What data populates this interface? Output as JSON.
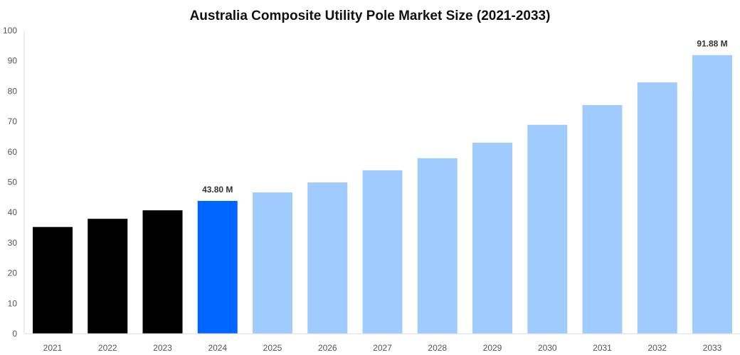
{
  "chart_data": {
    "type": "bar",
    "title": "Australia Composite Utility Pole Market Size (2021-2033)",
    "xlabel": "",
    "ylabel": "",
    "categories": [
      "2021",
      "2022",
      "2023",
      "2024",
      "2025",
      "2026",
      "2027",
      "2028",
      "2029",
      "2030",
      "2031",
      "2032",
      "2033"
    ],
    "values": [
      35.2,
      37.9,
      40.7,
      43.8,
      46.6,
      49.9,
      53.9,
      57.9,
      63.0,
      68.9,
      75.4,
      82.9,
      91.88
    ],
    "colors": [
      "#000000",
      "#000000",
      "#000000",
      "#0066ff",
      "#a0cbff",
      "#a0cbff",
      "#a0cbff",
      "#a0cbff",
      "#a0cbff",
      "#a0cbff",
      "#a0cbff",
      "#a0cbff",
      "#a0cbff"
    ],
    "data_labels": {
      "3": "43.80 M",
      "12": "91.88 M"
    },
    "ylim": [
      0,
      100
    ],
    "yticks": [
      "0",
      "10",
      "20",
      "30",
      "40",
      "50",
      "60",
      "70",
      "80",
      "90",
      "100"
    ],
    "grid": false,
    "legend": "none"
  }
}
